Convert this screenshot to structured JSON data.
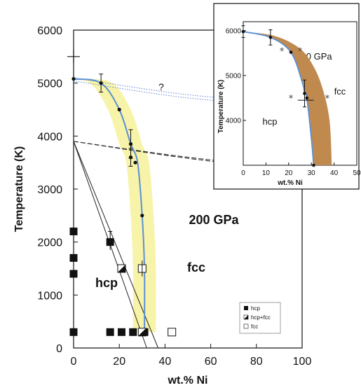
{
  "chart_data": [
    {
      "type": "scatter",
      "xlabel": "wt.% Ni",
      "ylabel": "Temperature (K)",
      "xlim": [
        0,
        100
      ],
      "ylim": [
        0,
        6000
      ],
      "x_ticks": [
        "0",
        "20",
        "40",
        "60",
        "80",
        "100"
      ],
      "y_ticks": [
        "0",
        "1000",
        "2000",
        "3000",
        "4000",
        "5000",
        "6000"
      ],
      "annotations": [
        "200 GPa",
        "hcp",
        "fcc",
        "?"
      ],
      "legend": {
        "position": "bottom-right",
        "entries": [
          "hcp",
          "hcp+fcc",
          "fcc"
        ]
      },
      "series": [
        {
          "name": "hcp",
          "points": [
            [
              0,
              2200
            ],
            [
              0,
              1700
            ],
            [
              0,
              1400
            ],
            [
              0,
              300
            ],
            [
              18,
              300
            ],
            [
              22,
              300
            ],
            [
              29,
              300
            ],
            [
              31,
              300
            ],
            [
              31,
              1500
            ],
            [
              31,
              2000
            ],
            [
              31,
              2500
            ],
            [
              31,
              3000
            ],
            [
              18,
              2000
            ]
          ]
        },
        {
          "name": "hcp+fcc",
          "points": [
            [
              25,
              1500
            ],
            [
              35,
              300
            ]
          ]
        },
        {
          "name": "fcc",
          "points": [
            [
              35,
              1500
            ],
            [
              50,
              300
            ]
          ]
        },
        {
          "name": "Phase boundary",
          "points": [
            [
              0,
              5080
            ],
            [
              12,
              5000
            ],
            [
              20,
              4500
            ],
            [
              25,
              3850
            ],
            [
              28,
              3500
            ],
            [
              30,
              2500
            ],
            [
              31,
              1500
            ],
            [
              31,
              300
            ]
          ]
        },
        {
          "name": "melting curve (dotted)",
          "points": [
            [
              0,
              5100
            ],
            [
              50,
              4780
            ],
            [
              100,
              4620
            ]
          ]
        },
        {
          "name": "melting curve (dashed)",
          "points": [
            [
              0,
              3900
            ],
            [
              50,
              3600
            ],
            [
              100,
              3380
            ]
          ]
        }
      ],
      "extra_point_label": "+",
      "extra_point": [
        0,
        5500
      ]
    },
    {
      "type": "scatter",
      "xlabel": "wt.% Ni",
      "ylabel": "Temperature (K)",
      "xlim": [
        0,
        50
      ],
      "ylim": [
        3000,
        6200
      ],
      "x_ticks": [
        "0",
        "10",
        "20",
        "30",
        "40",
        "50"
      ],
      "y_ticks": [
        "4000",
        "5000",
        "6000"
      ],
      "annotations": [
        "330 GPa",
        "fcc",
        "hcp"
      ],
      "series": [
        {
          "name": "boundary",
          "points": [
            [
              0,
              5980
            ],
            [
              12,
              5850
            ],
            [
              21,
              5520
            ],
            [
              26,
              4850
            ],
            [
              27,
              4600
            ],
            [
              28,
              4500
            ],
            [
              30,
              3600
            ],
            [
              31,
              3000
            ]
          ]
        },
        {
          "name": "stars",
          "points": [
            [
              17,
              5550
            ],
            [
              25,
              5550
            ],
            [
              21,
              4500
            ],
            [
              37,
              4500
            ]
          ]
        }
      ]
    }
  ]
}
